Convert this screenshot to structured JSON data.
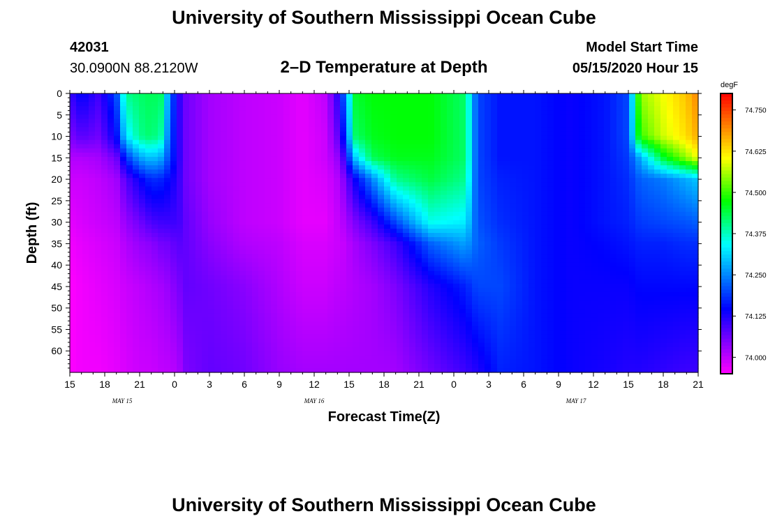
{
  "header": {
    "title_top": "University of Southern Mississippi Ocean Cube",
    "title_bottom": "University of Southern Mississippi Ocean Cube",
    "station_id": "42031",
    "station_coords": "30.0900N 88.2120W",
    "plot_title": "2–D Temperature at Depth",
    "model_start_label": "Model Start Time",
    "model_start_value": "05/15/2020 Hour 15"
  },
  "chart_data": {
    "type": "heatmap",
    "title": "2–D Temperature at Depth",
    "xlabel": "Forecast Time(Z)",
    "ylabel": "Depth (ft)",
    "x_hours_range": [
      0,
      54
    ],
    "x_tick_hours": [
      0,
      3,
      6,
      9,
      12,
      15,
      18,
      21,
      24,
      27,
      30,
      33,
      36,
      39,
      42,
      45,
      48,
      51,
      54
    ],
    "x_tick_labels": [
      "15",
      "18",
      "21",
      "0",
      "3",
      "6",
      "9",
      "12",
      "15",
      "18",
      "21",
      "0",
      "3",
      "6",
      "9",
      "12",
      "15",
      "18",
      "21"
    ],
    "date_labels": [
      {
        "text": "MAY 15",
        "hour": 4.5
      },
      {
        "text": "MAY 16",
        "hour": 21
      },
      {
        "text": "MAY 17",
        "hour": 43.5
      }
    ],
    "y_range": [
      0,
      65
    ],
    "y_ticks": [
      0,
      5,
      10,
      15,
      20,
      25,
      30,
      35,
      40,
      45,
      50,
      55,
      60
    ],
    "y_tick_labels": [
      "0",
      "5",
      "10",
      "15",
      "20",
      "25",
      "30",
      "35",
      "40",
      "45",
      "50",
      "55",
      "60"
    ],
    "colorbar": {
      "unit": "degF",
      "range": [
        73.95,
        74.8
      ],
      "tick_values": [
        74.0,
        74.125,
        74.25,
        74.375,
        74.5,
        74.625,
        74.75
      ],
      "tick_labels": [
        "74.000",
        "74.125",
        "74.250",
        "74.375",
        "74.500",
        "74.625",
        "74.750"
      ],
      "colors": [
        "#ff00ff",
        "#aa00ff",
        "#5500ff",
        "#0000ff",
        "#0055ff",
        "#00aaff",
        "#00ffff",
        "#00ff80",
        "#00ff00",
        "#80ff00",
        "#ffff00",
        "#ffaa00",
        "#ff5500",
        "#ff0000"
      ]
    },
    "depth_levels": [
      0,
      10,
      15,
      20,
      30,
      35,
      45,
      65
    ],
    "columns": [
      {
        "hour": 0.0,
        "temps": [
          74.1,
          74.05,
          74.01,
          73.99,
          73.97,
          73.96,
          73.95,
          73.95
        ]
      },
      {
        "hour": 1.0,
        "temps": [
          74.15,
          74.08,
          74.01,
          73.99,
          73.98,
          73.97,
          73.96,
          73.96
        ]
      },
      {
        "hour": 2.5,
        "temps": [
          74.1,
          74.06,
          74.02,
          74.0,
          73.99,
          73.98,
          73.97,
          73.96
        ]
      },
      {
        "hour": 4.0,
        "temps": [
          74.2,
          74.15,
          74.06,
          74.02,
          74.0,
          73.99,
          73.98,
          73.97
        ]
      },
      {
        "hour": 4.8,
        "temps": [
          74.4,
          74.32,
          74.18,
          74.08,
          74.03,
          74.01,
          73.99,
          73.98
        ]
      },
      {
        "hour": 6.0,
        "temps": [
          74.42,
          74.4,
          74.27,
          74.14,
          74.06,
          74.03,
          74.0,
          73.99
        ]
      },
      {
        "hour": 7.0,
        "temps": [
          74.43,
          74.42,
          74.3,
          74.18,
          74.09,
          74.04,
          74.01,
          73.99
        ]
      },
      {
        "hour": 8.0,
        "temps": [
          74.42,
          74.38,
          74.27,
          74.17,
          74.1,
          74.06,
          74.02,
          74.0
        ]
      },
      {
        "hour": 8.5,
        "temps": [
          74.25,
          74.22,
          74.2,
          74.15,
          74.1,
          74.06,
          74.03,
          74.0
        ]
      },
      {
        "hour": 9.3,
        "temps": [
          74.12,
          74.12,
          74.12,
          74.11,
          74.1,
          74.08,
          74.05,
          74.01
        ]
      },
      {
        "hour": 10.0,
        "temps": [
          74.06,
          74.06,
          74.06,
          74.06,
          74.07,
          74.07,
          74.07,
          74.05
        ]
      },
      {
        "hour": 12.0,
        "temps": [
          74.02,
          74.02,
          74.02,
          74.02,
          74.03,
          74.04,
          74.06,
          74.07
        ]
      },
      {
        "hour": 15.0,
        "temps": [
          74.0,
          74.0,
          74.0,
          74.0,
          74.0,
          74.01,
          74.04,
          74.06
        ]
      },
      {
        "hour": 18.0,
        "temps": [
          73.99,
          73.99,
          73.99,
          73.99,
          73.99,
          74.0,
          74.01,
          74.03
        ]
      },
      {
        "hour": 20.0,
        "temps": [
          73.97,
          73.97,
          73.97,
          73.97,
          73.97,
          73.98,
          73.99,
          74.02
        ]
      },
      {
        "hour": 22.0,
        "temps": [
          74.0,
          73.99,
          73.99,
          73.98,
          73.97,
          73.98,
          73.99,
          74.02
        ]
      },
      {
        "hour": 22.8,
        "temps": [
          74.08,
          74.05,
          74.02,
          74.0,
          73.99,
          73.99,
          74.0,
          74.02
        ]
      },
      {
        "hour": 23.3,
        "temps": [
          74.16,
          74.1,
          74.05,
          74.02,
          74.0,
          73.99,
          74.0,
          74.02
        ]
      },
      {
        "hour": 24.5,
        "temps": [
          74.45,
          74.42,
          74.3,
          74.14,
          74.05,
          74.02,
          74.01,
          74.02
        ]
      },
      {
        "hour": 26.0,
        "temps": [
          74.47,
          74.46,
          74.43,
          74.25,
          74.1,
          74.05,
          74.02,
          74.02
        ]
      },
      {
        "hour": 28.0,
        "temps": [
          74.47,
          74.47,
          74.46,
          74.4,
          74.2,
          74.1,
          74.05,
          74.02
        ]
      },
      {
        "hour": 31.0,
        "temps": [
          74.47,
          74.47,
          74.46,
          74.44,
          74.35,
          74.22,
          74.12,
          74.06
        ]
      },
      {
        "hour": 34.0,
        "temps": [
          74.42,
          74.42,
          74.42,
          74.4,
          74.33,
          74.27,
          74.17,
          74.1
        ]
      },
      {
        "hour": 35.0,
        "temps": [
          74.2,
          74.2,
          74.2,
          74.2,
          74.21,
          74.22,
          74.2,
          74.12
        ]
      },
      {
        "hour": 37.0,
        "temps": [
          74.16,
          74.16,
          74.16,
          74.17,
          74.18,
          74.19,
          74.2,
          74.17
        ]
      },
      {
        "hour": 40.0,
        "temps": [
          74.16,
          74.16,
          74.16,
          74.16,
          74.16,
          74.16,
          74.16,
          74.16
        ]
      },
      {
        "hour": 43.0,
        "temps": [
          74.14,
          74.14,
          74.14,
          74.14,
          74.14,
          74.14,
          74.14,
          74.14
        ]
      },
      {
        "hour": 46.0,
        "temps": [
          74.16,
          74.16,
          74.16,
          74.16,
          74.16,
          74.15,
          74.14,
          74.13
        ]
      },
      {
        "hour": 48.0,
        "temps": [
          74.2,
          74.2,
          74.19,
          74.18,
          74.17,
          74.16,
          74.14,
          74.12
        ]
      },
      {
        "hour": 49.0,
        "temps": [
          74.55,
          74.5,
          74.28,
          74.22,
          74.19,
          74.17,
          74.15,
          74.12
        ]
      },
      {
        "hour": 51.0,
        "temps": [
          74.6,
          74.58,
          74.45,
          74.24,
          74.2,
          74.17,
          74.15,
          74.11
        ]
      },
      {
        "hour": 53.0,
        "temps": [
          74.65,
          74.63,
          74.55,
          74.28,
          74.21,
          74.18,
          74.15,
          74.1
        ]
      },
      {
        "hour": 54.0,
        "temps": [
          74.7,
          74.67,
          74.6,
          74.3,
          74.22,
          74.18,
          74.15,
          74.1
        ]
      }
    ]
  }
}
